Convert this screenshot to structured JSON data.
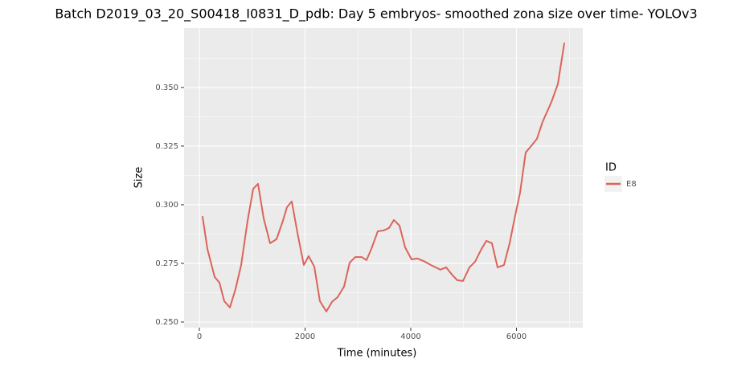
{
  "chart_data": {
    "type": "line",
    "title": "Batch D2019_03_20_S00418_I0831_D_pdb: Day 5 embryos- smoothed zona size over time- YOLOv3",
    "x_label": "Time (minutes)",
    "y_label": "Size",
    "legend_title": "ID",
    "x": [
      61,
      152,
      289,
      380,
      471,
      578,
      684,
      791,
      913,
      1019,
      1110,
      1217,
      1338,
      1460,
      1582,
      1658,
      1749,
      1856,
      1977,
      2068,
      2175,
      2281,
      2403,
      2510,
      2616,
      2738,
      2844,
      2951,
      3072,
      3163,
      3255,
      3376,
      3483,
      3589,
      3681,
      3787,
      3894,
      4015,
      4122,
      4243,
      4380,
      4563,
      4669,
      4791,
      4882,
      4989,
      5110,
      5217,
      5323,
      5430,
      5536,
      5643,
      5764,
      5871,
      5977,
      6068,
      6175,
      6251,
      6388,
      6494,
      6662,
      6783,
      6905
    ],
    "series": [
      {
        "name": "E8",
        "color": "#dc6459",
        "values": [
          0.2949,
          0.2812,
          0.2692,
          0.2668,
          0.2589,
          0.2562,
          0.264,
          0.2743,
          0.2932,
          0.3068,
          0.3089,
          0.2942,
          0.2836,
          0.2853,
          0.2932,
          0.299,
          0.3014,
          0.288,
          0.2743,
          0.2781,
          0.2736,
          0.2589,
          0.2545,
          0.2586,
          0.2606,
          0.2651,
          0.2753,
          0.2777,
          0.2777,
          0.2764,
          0.2812,
          0.2887,
          0.289,
          0.2901,
          0.2935,
          0.2911,
          0.2818,
          0.2767,
          0.2771,
          0.276,
          0.2743,
          0.2723,
          0.2733,
          0.2699,
          0.2678,
          0.2675,
          0.2733,
          0.2757,
          0.2805,
          0.2846,
          0.2836,
          0.2733,
          0.2743,
          0.2836,
          0.2955,
          0.3051,
          0.3223,
          0.3243,
          0.3281,
          0.3353,
          0.3438,
          0.3514,
          0.3688
        ]
      }
    ],
    "xlim": [
      -289,
      7255
    ],
    "ylim": [
      0.2476,
      0.3753
    ],
    "xticks": [
      0,
      2000,
      4000,
      6000
    ],
    "yticks": [
      {
        "value": 0.25,
        "label": "0.250"
      },
      0.275,
      {
        "value": 0.3,
        "label": "0.300"
      },
      0.325,
      {
        "value": 0.35,
        "label": "0.350"
      }
    ],
    "grid": true,
    "minor_grid": true,
    "legend_position": "right"
  }
}
